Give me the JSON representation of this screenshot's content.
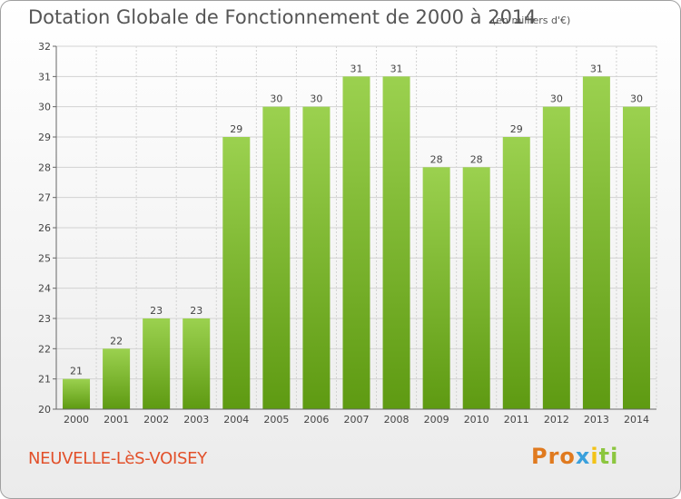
{
  "title": "Dotation Globale de Fonctionnement de 2000 à 2014",
  "subtitle": "(en milliers d'€)",
  "place": "NEUVELLE-LèS-VOISEY",
  "logo": {
    "text": "Proxiti",
    "p1": "Pro",
    "p2": "x",
    "p3": "i",
    "p4": "ti"
  },
  "colors": {
    "bar_top": "#9bd14f",
    "bar_bottom": "#5e9a12",
    "grid": "#d2d2d2",
    "axis": "#666666",
    "place": "#e2502a"
  },
  "chart_data": {
    "type": "bar",
    "categories": [
      "2000",
      "2001",
      "2002",
      "2003",
      "2004",
      "2005",
      "2006",
      "2007",
      "2008",
      "2009",
      "2010",
      "2011",
      "2012",
      "2013",
      "2014"
    ],
    "values": [
      21,
      22,
      23,
      23,
      29,
      30,
      30,
      31,
      31,
      28,
      28,
      29,
      30,
      31,
      30
    ],
    "ylim": [
      20,
      32
    ],
    "yticks": [
      20,
      21,
      22,
      23,
      24,
      25,
      26,
      27,
      28,
      29,
      30,
      31,
      32
    ],
    "title": "Dotation Globale de Fonctionnement de 2000 à 2014",
    "xlabel": "",
    "ylabel": "",
    "grid": true
  }
}
